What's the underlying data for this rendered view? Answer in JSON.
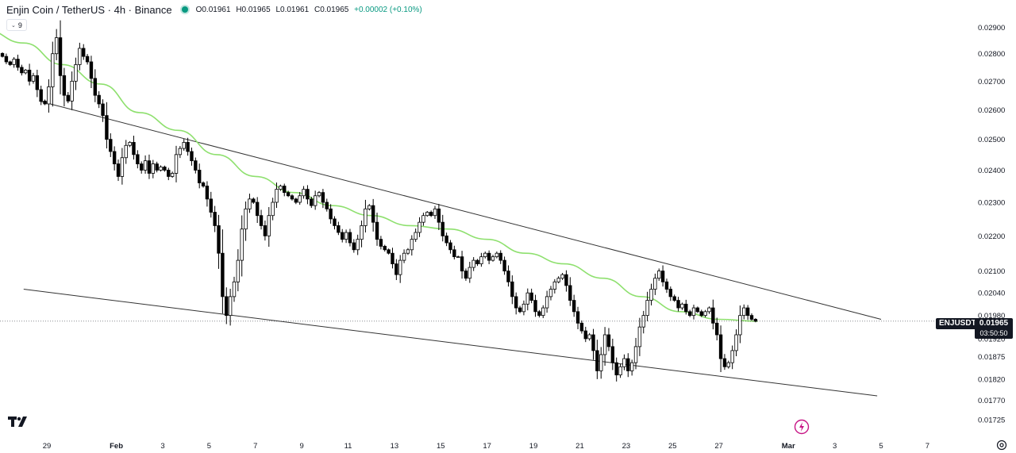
{
  "header": {
    "title": "Enjin Coin / TetherUS · 4h · Binance",
    "ohlc": {
      "open": "O0.01961",
      "high": "H0.01965",
      "low": "L0.01961",
      "close": "C0.01965",
      "change": "+0.00002 (+0.10%)"
    },
    "indicator_count": "9"
  },
  "last_price": {
    "ticker": "ENJUSDT",
    "price": "0.01965",
    "countdown": "03:50:50"
  },
  "colors": {
    "up_body": "#ffffff",
    "down_body": "#000000",
    "candle_outline": "#000000",
    "ma": "#8ee06e",
    "trendline": "#333333",
    "status": "#089981",
    "flash": "#c71585"
  },
  "icons": [
    "tradingview-logo-icon",
    "flash-icon",
    "settings-icon",
    "chevron-down-icon"
  ],
  "chart_data": {
    "type": "candlestick",
    "timeframe": "4h",
    "y_scale": "log",
    "ylim": [
      0.01705,
      0.02975
    ],
    "y_ticks": [
      "0.02900",
      "0.02800",
      "0.02700",
      "0.02600",
      "0.02500",
      "0.02400",
      "0.02300",
      "0.02200",
      "0.02100",
      "0.02040",
      "0.01980",
      "0.01920",
      "0.01875",
      "0.01820",
      "0.01770",
      "0.01725"
    ],
    "x_ticks": [
      "29",
      "Feb",
      "3",
      "5",
      "7",
      "9",
      "11",
      "13",
      "15",
      "17",
      "19",
      "21",
      "23",
      "25",
      "27",
      "Mar",
      "3",
      "5",
      "7"
    ],
    "x_tick_dates": [
      "2024-01-29",
      "2024-02-01",
      "2024-02-03",
      "2024-02-05",
      "2024-02-07",
      "2024-02-09",
      "2024-02-11",
      "2024-02-13",
      "2024-02-15",
      "2024-02-17",
      "2024-02-19",
      "2024-02-21",
      "2024-02-23",
      "2024-02-25",
      "2024-02-27",
      "2024-03-01",
      "2024-03-03",
      "2024-03-05",
      "2024-03-07"
    ],
    "candle_start": "2024-01-27 00:00",
    "candle_close": [
      0.0279,
      0.0277,
      0.0276,
      0.0278,
      0.0275,
      0.0273,
      0.0274,
      0.027,
      0.0272,
      0.0267,
      0.0263,
      0.0262,
      0.0268,
      0.028,
      0.0286,
      0.0272,
      0.0265,
      0.0263,
      0.027,
      0.0276,
      0.0282,
      0.0279,
      0.0277,
      0.0271,
      0.0265,
      0.0262,
      0.0258,
      0.025,
      0.0246,
      0.0242,
      0.0238,
      0.0244,
      0.0248,
      0.0249,
      0.0245,
      0.0242,
      0.024,
      0.0243,
      0.0239,
      0.0242,
      0.024,
      0.0241,
      0.024,
      0.0238,
      0.0239,
      0.0245,
      0.0247,
      0.0249,
      0.0246,
      0.0243,
      0.024,
      0.0236,
      0.0235,
      0.0231,
      0.0227,
      0.0223,
      0.0215,
      0.0203,
      0.0198,
      0.0203,
      0.0207,
      0.0213,
      0.0222,
      0.0228,
      0.0231,
      0.023,
      0.0226,
      0.0223,
      0.022,
      0.0226,
      0.023,
      0.0234,
      0.0235,
      0.0233,
      0.0232,
      0.0231,
      0.023,
      0.0232,
      0.0234,
      0.0231,
      0.0229,
      0.0232,
      0.0233,
      0.023,
      0.0228,
      0.0225,
      0.0223,
      0.0221,
      0.0219,
      0.0221,
      0.0218,
      0.0216,
      0.0219,
      0.0223,
      0.0228,
      0.0229,
      0.0224,
      0.0219,
      0.0217,
      0.0216,
      0.0215,
      0.0212,
      0.0209,
      0.0213,
      0.0215,
      0.0216,
      0.0219,
      0.0221,
      0.0224,
      0.0226,
      0.0227,
      0.0226,
      0.0228,
      0.0224,
      0.022,
      0.0218,
      0.0216,
      0.0214,
      0.0214,
      0.021,
      0.0208,
      0.0211,
      0.0213,
      0.0212,
      0.0214,
      0.0215,
      0.0213,
      0.0214,
      0.0215,
      0.0213,
      0.021,
      0.0207,
      0.0203,
      0.02,
      0.0199,
      0.0201,
      0.0204,
      0.0202,
      0.0199,
      0.0198,
      0.02,
      0.0203,
      0.0205,
      0.0207,
      0.0208,
      0.0209,
      0.0206,
      0.0202,
      0.0199,
      0.0196,
      0.0194,
      0.0192,
      0.0193,
      0.0189,
      0.0184,
      0.0188,
      0.0193,
      0.019,
      0.0186,
      0.0183,
      0.0185,
      0.0187,
      0.0184,
      0.0186,
      0.019,
      0.0195,
      0.0198,
      0.0202,
      0.0205,
      0.0208,
      0.021,
      0.0207,
      0.0205,
      0.0203,
      0.0202,
      0.02,
      0.0201,
      0.0199,
      0.0198,
      0.02,
      0.0199,
      0.0198,
      0.0199,
      0.02,
      0.0196,
      0.0193,
      0.0187,
      0.0185,
      0.0186,
      0.0189,
      0.0193,
      0.0198,
      0.02,
      0.0198,
      0.0197,
      0.01965
    ],
    "ma_series": {
      "x": [
        "2024-01-26 08:00",
        "2024-01-28 00:00",
        "2024-01-29 16:00",
        "2024-01-31 08:00",
        "2024-02-02 00:00",
        "2024-02-03 16:00",
        "2024-02-05 08:00",
        "2024-02-07 00:00",
        "2024-02-08 16:00",
        "2024-02-10 08:00",
        "2024-02-12 00:00",
        "2024-02-13 16:00",
        "2024-02-15 08:00",
        "2024-02-17 00:00",
        "2024-02-18 16:00",
        "2024-02-20 08:00",
        "2024-02-22 00:00",
        "2024-02-23 16:00",
        "2024-02-25 08:00",
        "2024-02-27 00:00",
        "2024-02-28 16:00"
      ],
      "y": [
        0.0289,
        0.0284,
        0.0276,
        0.0269,
        0.0259,
        0.0253,
        0.0245,
        0.0238,
        0.0233,
        0.0229,
        0.0226,
        0.0223,
        0.0222,
        0.0219,
        0.0215,
        0.0212,
        0.0208,
        0.0203,
        0.0199,
        0.0197,
        0.01965
      ]
    },
    "trendlines": [
      {
        "name": "upper",
        "x": [
          "2024-01-28 16:00",
          "2024-03-05 00:00"
        ],
        "y": [
          0.0263,
          0.0197
        ]
      },
      {
        "name": "lower",
        "x": [
          "2024-01-28 00:00",
          "2024-03-04 20:00"
        ],
        "y": [
          0.0205,
          0.0178
        ]
      }
    ],
    "last_price_line": 0.01965,
    "grid": false
  }
}
